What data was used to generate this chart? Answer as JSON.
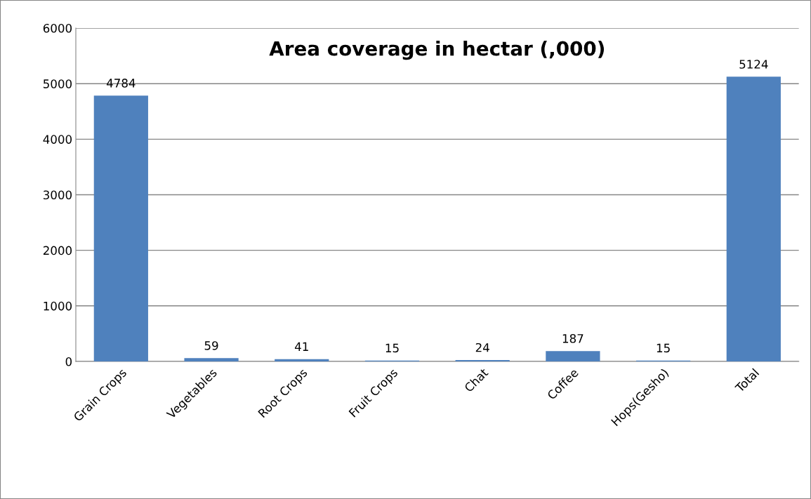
{
  "chart_data": {
    "type": "bar",
    "title": "Area coverage in hectar (,000)",
    "categories": [
      "Grain Crops",
      "Vegetables",
      "Root Crops",
      "Fruit Crops",
      "Chat",
      "Coffee",
      "Hops(Gesho)",
      "Total"
    ],
    "values": [
      4784,
      59,
      41,
      15,
      24,
      187,
      15,
      5124
    ],
    "color": "#4f81bd",
    "data_labels": true,
    "ylim": [
      0,
      6000
    ],
    "yticks": [
      0,
      1000,
      2000,
      3000,
      4000,
      5000,
      6000
    ],
    "grid": "y",
    "legend": false
  }
}
